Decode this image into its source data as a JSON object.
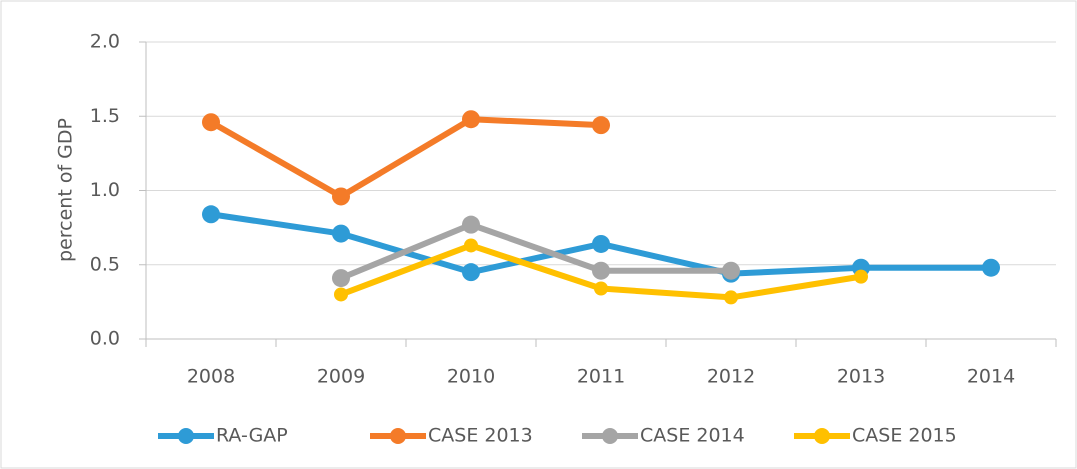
{
  "chart_data": {
    "type": "line",
    "y_label": "percent of GDP",
    "categories": [
      "2008",
      "2009",
      "2010",
      "2011",
      "2012",
      "2013",
      "2014"
    ],
    "series": [
      {
        "name": "RA-GAP",
        "color": "#2e9bd6",
        "values": [
          0.84,
          0.71,
          0.45,
          0.64,
          0.44,
          0.48,
          0.48
        ]
      },
      {
        "name": "CASE 2013",
        "color": "#f47b28",
        "values": [
          1.46,
          0.96,
          1.48,
          1.44,
          null,
          null,
          null
        ]
      },
      {
        "name": "CASE 2014",
        "color": "#a5a5a5",
        "values": [
          null,
          0.41,
          0.77,
          0.46,
          0.46,
          null,
          null
        ]
      },
      {
        "name": "CASE 2015",
        "color": "#ffc000",
        "values": [
          null,
          0.3,
          0.63,
          0.34,
          0.28,
          0.42,
          null
        ]
      }
    ],
    "ylim": [
      0,
      2
    ],
    "yticks": [
      {
        "value": 0,
        "label": "0.0"
      },
      {
        "value": 0.5,
        "label": "0.5"
      },
      {
        "value": 1,
        "label": "1.0"
      },
      {
        "value": 1.5,
        "label": "1.5"
      },
      {
        "value": 2,
        "label": "2.0"
      }
    ],
    "grid": true,
    "legend": "bottom"
  }
}
